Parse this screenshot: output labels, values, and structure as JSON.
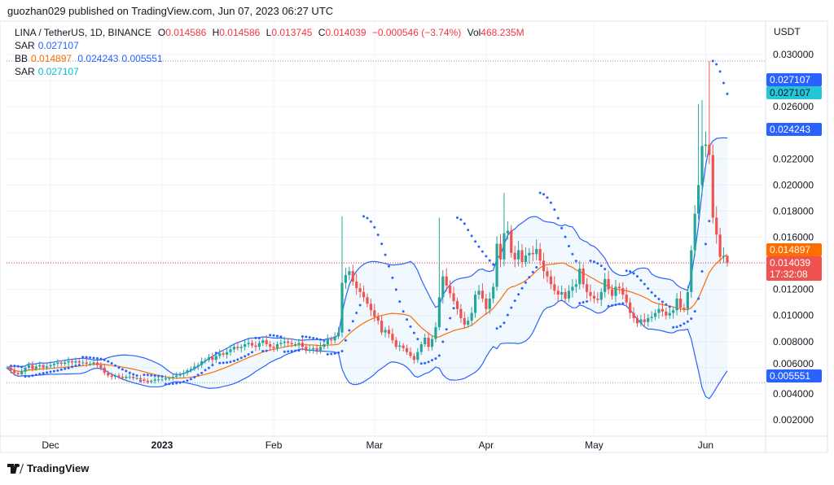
{
  "header": {
    "published": "guozhan029 published on TradingView.com, Jun 07, 2023 06:27 UTC",
    "symbol": "LINA / TetherUS, 1D, BINANCE",
    "o_label": "O",
    "o": "0.014586",
    "h_label": "H",
    "h": "0.014586",
    "l_label": "L",
    "l": "0.013745",
    "c_label": "C",
    "c": "0.014039",
    "change": "−0.000546 (−3.74%)",
    "vol_label": "Vol",
    "vol": "468.235M"
  },
  "indicators": {
    "sar1": {
      "name": "SAR",
      "value": "0.027107"
    },
    "bb": {
      "name": "BB",
      "basis": "0.014897",
      "upper": "0.024243",
      "lower": "0.005551"
    },
    "sar2": {
      "name": "SAR",
      "value": "0.027107"
    }
  },
  "price_axis": {
    "currency": "USDT",
    "labels": {
      "sar1": "0.027107",
      "sar2": "0.027107",
      "bb_upper": "0.024243",
      "bb_basis": "0.014897",
      "last_price": "0.014039",
      "countdown": "17:32:08",
      "bb_lower": "0.005551"
    }
  },
  "footer": {
    "brand": "TradingView"
  },
  "colors": {
    "up": "#26a69a",
    "down": "#ef5350",
    "bb_band": "#2962ff",
    "bb_basis": "#ff6d00",
    "sar": "#2962ff",
    "sar2": "#00bcd4",
    "last": "#f23645"
  },
  "chart_data": {
    "type": "candlestick",
    "title": "LINA / TetherUS, 1D, BINANCE",
    "ylabel": "USDT",
    "ylim": [
      0.0015,
      0.0315
    ],
    "y_ticks": [
      "0.030000",
      "0.026000",
      "0.022000",
      "0.020000",
      "0.018000",
      "0.016000",
      "0.012000",
      "0.010000",
      "0.008000",
      "0.006000",
      "0.004000",
      "0.002000"
    ],
    "x_ticks": [
      {
        "label": "Dec",
        "index": 12
      },
      {
        "label": "2023",
        "index": 43
      },
      {
        "label": "Feb",
        "index": 74
      },
      {
        "label": "Mar",
        "index": 102
      },
      {
        "label": "Apr",
        "index": 133
      },
      {
        "label": "May",
        "index": 163
      },
      {
        "label": "Jun",
        "index": 194
      }
    ],
    "start_date": "2022-11-19",
    "close": [
      0.006,
      0.0058,
      0.0056,
      0.0055,
      0.0057,
      0.006,
      0.0062,
      0.0059,
      0.0061,
      0.0062,
      0.006,
      0.0061,
      0.0062,
      0.0063,
      0.0064,
      0.0063,
      0.0064,
      0.0065,
      0.0064,
      0.0065,
      0.0064,
      0.0064,
      0.0063,
      0.0063,
      0.0064,
      0.0062,
      0.006,
      0.0056,
      0.0054,
      0.0053,
      0.0054,
      0.0053,
      0.0052,
      0.0053,
      0.0053,
      0.0052,
      0.0052,
      0.0051,
      0.005,
      0.0049,
      0.005,
      0.0051,
      0.0051,
      0.0051,
      0.0052,
      0.0052,
      0.0053,
      0.0054,
      0.0055,
      0.0056,
      0.0058,
      0.0059,
      0.0061,
      0.0062,
      0.0065,
      0.0066,
      0.0068,
      0.0066,
      0.0069,
      0.0071,
      0.007,
      0.0072,
      0.0074,
      0.0076,
      0.0075,
      0.0076,
      0.0078,
      0.0079,
      0.0077,
      0.0076,
      0.0079,
      0.0081,
      0.0078,
      0.0076,
      0.0075,
      0.0078,
      0.0079,
      0.008,
      0.0079,
      0.0078,
      0.0078,
      0.0079,
      0.0076,
      0.0073,
      0.0074,
      0.0075,
      0.0073,
      0.0076,
      0.0078,
      0.0082,
      0.0081,
      0.0084,
      0.0087,
      0.0125,
      0.0131,
      0.0134,
      0.0126,
      0.0121,
      0.0118,
      0.0114,
      0.0109,
      0.0104,
      0.0099,
      0.0096,
      0.0087,
      0.0089,
      0.0086,
      0.0081,
      0.0076,
      0.0077,
      0.0075,
      0.0072,
      0.0069,
      0.0066,
      0.0072,
      0.0078,
      0.0083,
      0.0076,
      0.0082,
      0.0091,
      0.0114,
      0.013,
      0.0123,
      0.0117,
      0.0111,
      0.0105,
      0.0098,
      0.0093,
      0.0096,
      0.0102,
      0.0116,
      0.0119,
      0.0113,
      0.0105,
      0.0113,
      0.0122,
      0.0155,
      0.0143,
      0.0163,
      0.0165,
      0.0148,
      0.0143,
      0.015,
      0.0141,
      0.0146,
      0.0148,
      0.0147,
      0.0151,
      0.0142,
      0.0134,
      0.013,
      0.0124,
      0.0119,
      0.0116,
      0.0118,
      0.0113,
      0.0119,
      0.0122,
      0.0124,
      0.0136,
      0.0124,
      0.0118,
      0.0115,
      0.0113,
      0.0112,
      0.0118,
      0.0128,
      0.012,
      0.0115,
      0.0122,
      0.0121,
      0.0116,
      0.011,
      0.0102,
      0.0098,
      0.0094,
      0.0097,
      0.0095,
      0.0098,
      0.0099,
      0.0102,
      0.0105,
      0.0103,
      0.01,
      0.0102,
      0.0104,
      0.0113,
      0.0106,
      0.0105,
      0.0118,
      0.015,
      0.0178,
      0.02,
      0.023,
      0.0231,
      0.0223,
      0.0175,
      0.0162,
      0.0145,
      0.014586,
      0.014039
    ],
    "high_spikes": [
      {
        "index": 93,
        "high": 0.0176
      },
      {
        "index": 120,
        "high": 0.0175
      },
      {
        "index": 138,
        "high": 0.0194
      },
      {
        "index": 192,
        "high": 0.0262
      },
      {
        "index": 193,
        "high": 0.0265
      },
      {
        "index": 195,
        "high": 0.0295
      },
      {
        "index": 200,
        "high": 0.014586
      }
    ],
    "low_overrides": [
      {
        "index": 200,
        "low": 0.013745
      }
    ],
    "indicators": [
      "Parabolic SAR",
      "Bollinger Bands (20, 2)",
      "Parabolic SAR"
    ]
  }
}
